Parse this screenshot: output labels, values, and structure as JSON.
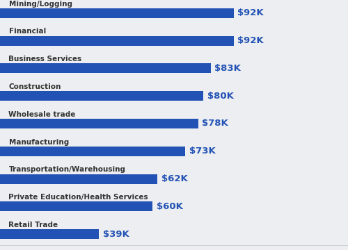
{
  "chart_data": {
    "type": "bar",
    "orientation": "horizontal",
    "categories": [
      "Mining/Logging",
      "Financial",
      "Business Services",
      "Construction",
      "Wholesale trade",
      "Manufacturing",
      "Transportation/Warehousing",
      "Private Education/Health Services",
      "Retail Trade"
    ],
    "values": [
      92000,
      92000,
      83000,
      80000,
      78000,
      73000,
      62000,
      60000,
      39000
    ],
    "value_labels": [
      "$92K",
      "$92K",
      "$83K",
      "$80K",
      "$78K",
      "$73K",
      "$62K",
      "$60K",
      "$39K"
    ],
    "color": "#2352b5",
    "data_labels": true,
    "tick_labels": false,
    "xlim": [
      0,
      137000
    ],
    "xticks": []
  }
}
